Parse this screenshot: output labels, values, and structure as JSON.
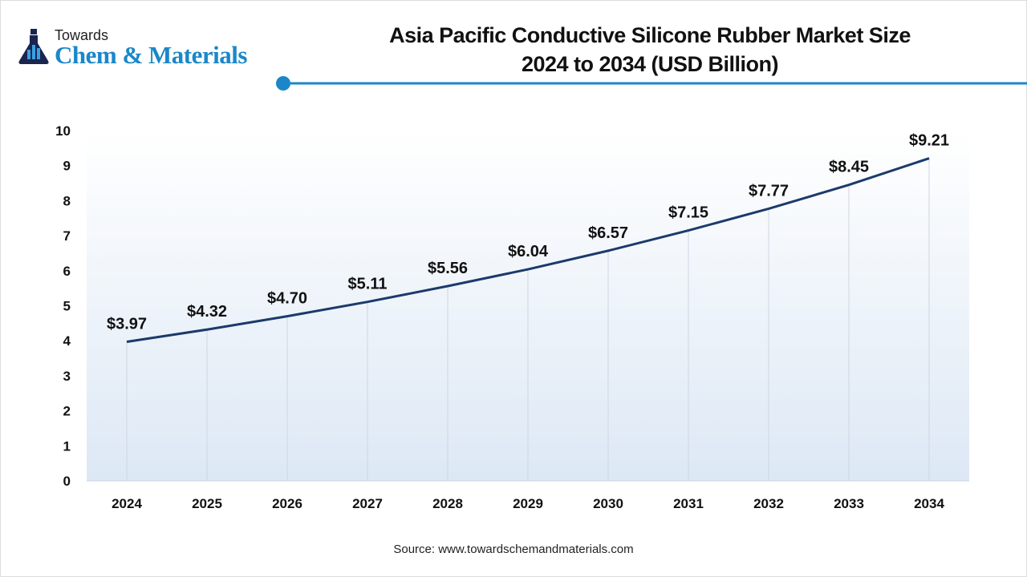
{
  "logo": {
    "line1": "Towards",
    "line2": "Chem & Materials"
  },
  "title_line1": "Asia Pacific Conductive Silicone Rubber Market Size",
  "title_line2": "2024 to 2034 (USD Billion)",
  "source": "Source: www.towardschemandmaterials.com",
  "colors": {
    "line": "#1b3a6b",
    "accent": "#1b87c9",
    "fill_bottom": "#dde8f5"
  },
  "chart_data": {
    "type": "line",
    "title": "Asia Pacific Conductive Silicone Rubber Market Size 2024 to 2034 (USD Billion)",
    "categories": [
      "2024",
      "2025",
      "2026",
      "2027",
      "2028",
      "2029",
      "2030",
      "2031",
      "2032",
      "2033",
      "2034"
    ],
    "values": [
      3.97,
      4.32,
      4.7,
      5.11,
      5.56,
      6.04,
      6.57,
      7.15,
      7.77,
      8.45,
      9.21
    ],
    "data_labels": [
      "$3.97",
      "$4.32",
      "$4.70",
      "$5.11",
      "$5.56",
      "$6.04",
      "$6.57",
      "$7.15",
      "$7.77",
      "$8.45",
      "$9.21"
    ],
    "yticks": [
      0,
      1,
      2,
      3,
      4,
      5,
      6,
      7,
      8,
      9,
      10
    ],
    "ylim": [
      0,
      10
    ],
    "xlabel": "",
    "ylabel": "",
    "grid": "vertical drop lines at each category"
  }
}
